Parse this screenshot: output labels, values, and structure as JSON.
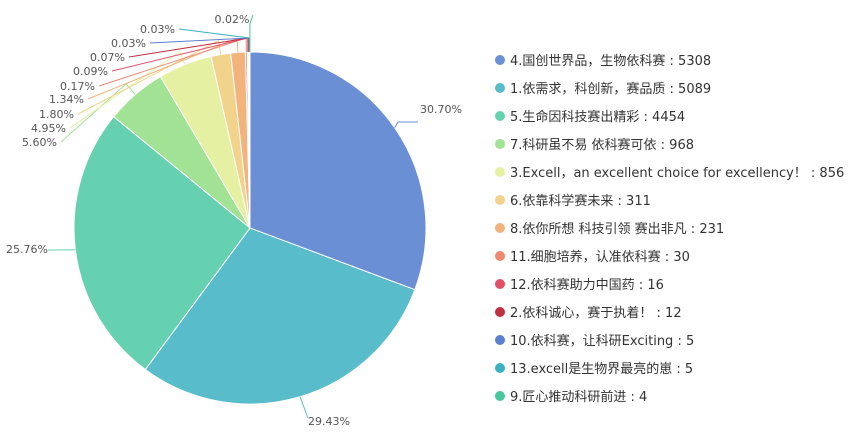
{
  "chart_data": {
    "type": "pie",
    "legend_position": "right",
    "slices": [
      {
        "label": "4.国创世界品，生物依科赛",
        "value": 5308,
        "percent": "30.70%",
        "color": "#6a8fd4"
      },
      {
        "label": "1.依需求，科创新，赛品质",
        "value": 5089,
        "percent": "29.43%",
        "color": "#58bccb"
      },
      {
        "label": "5.生命因科技赛出精彩",
        "value": 4454,
        "percent": "25.76%",
        "color": "#66d1b0"
      },
      {
        "label": "7.科研虽不易 依科赛可依",
        "value": 968,
        "percent": "5.60%",
        "color": "#a1e295"
      },
      {
        "label": "3.Excell，an excellent choice for excellency！",
        "value": 856,
        "percent": "4.95%",
        "color": "#e6f0a3"
      },
      {
        "label": "6.依靠科学赛未来",
        "value": 311,
        "percent": "1.80%",
        "color": "#f2d38c"
      },
      {
        "label": "8.依你所想 科技引领 赛出非凡",
        "value": 231,
        "percent": "1.34%",
        "color": "#f2b47c"
      },
      {
        "label": "11.细胞培养，认准依科赛",
        "value": 30,
        "percent": "0.17%",
        "color": "#ee8a74"
      },
      {
        "label": "12.依科赛助力中国药",
        "value": 16,
        "percent": "0.09%",
        "color": "#e05069"
      },
      {
        "label": "2.依科诚心，赛于执着！",
        "value": 12,
        "percent": "0.07%",
        "color": "#bf3043"
      },
      {
        "label": "10.依科赛，让科研Exciting",
        "value": 5,
        "percent": "0.03%",
        "color": "#5b7fd0"
      },
      {
        "label": "13.excell是生物界最亮的崽",
        "value": 5,
        "percent": "0.03%",
        "color": "#3cb2c1"
      },
      {
        "label": "9.匠心推动科研前进",
        "value": 4,
        "percent": "0.02%",
        "color": "#47c79e"
      }
    ]
  }
}
